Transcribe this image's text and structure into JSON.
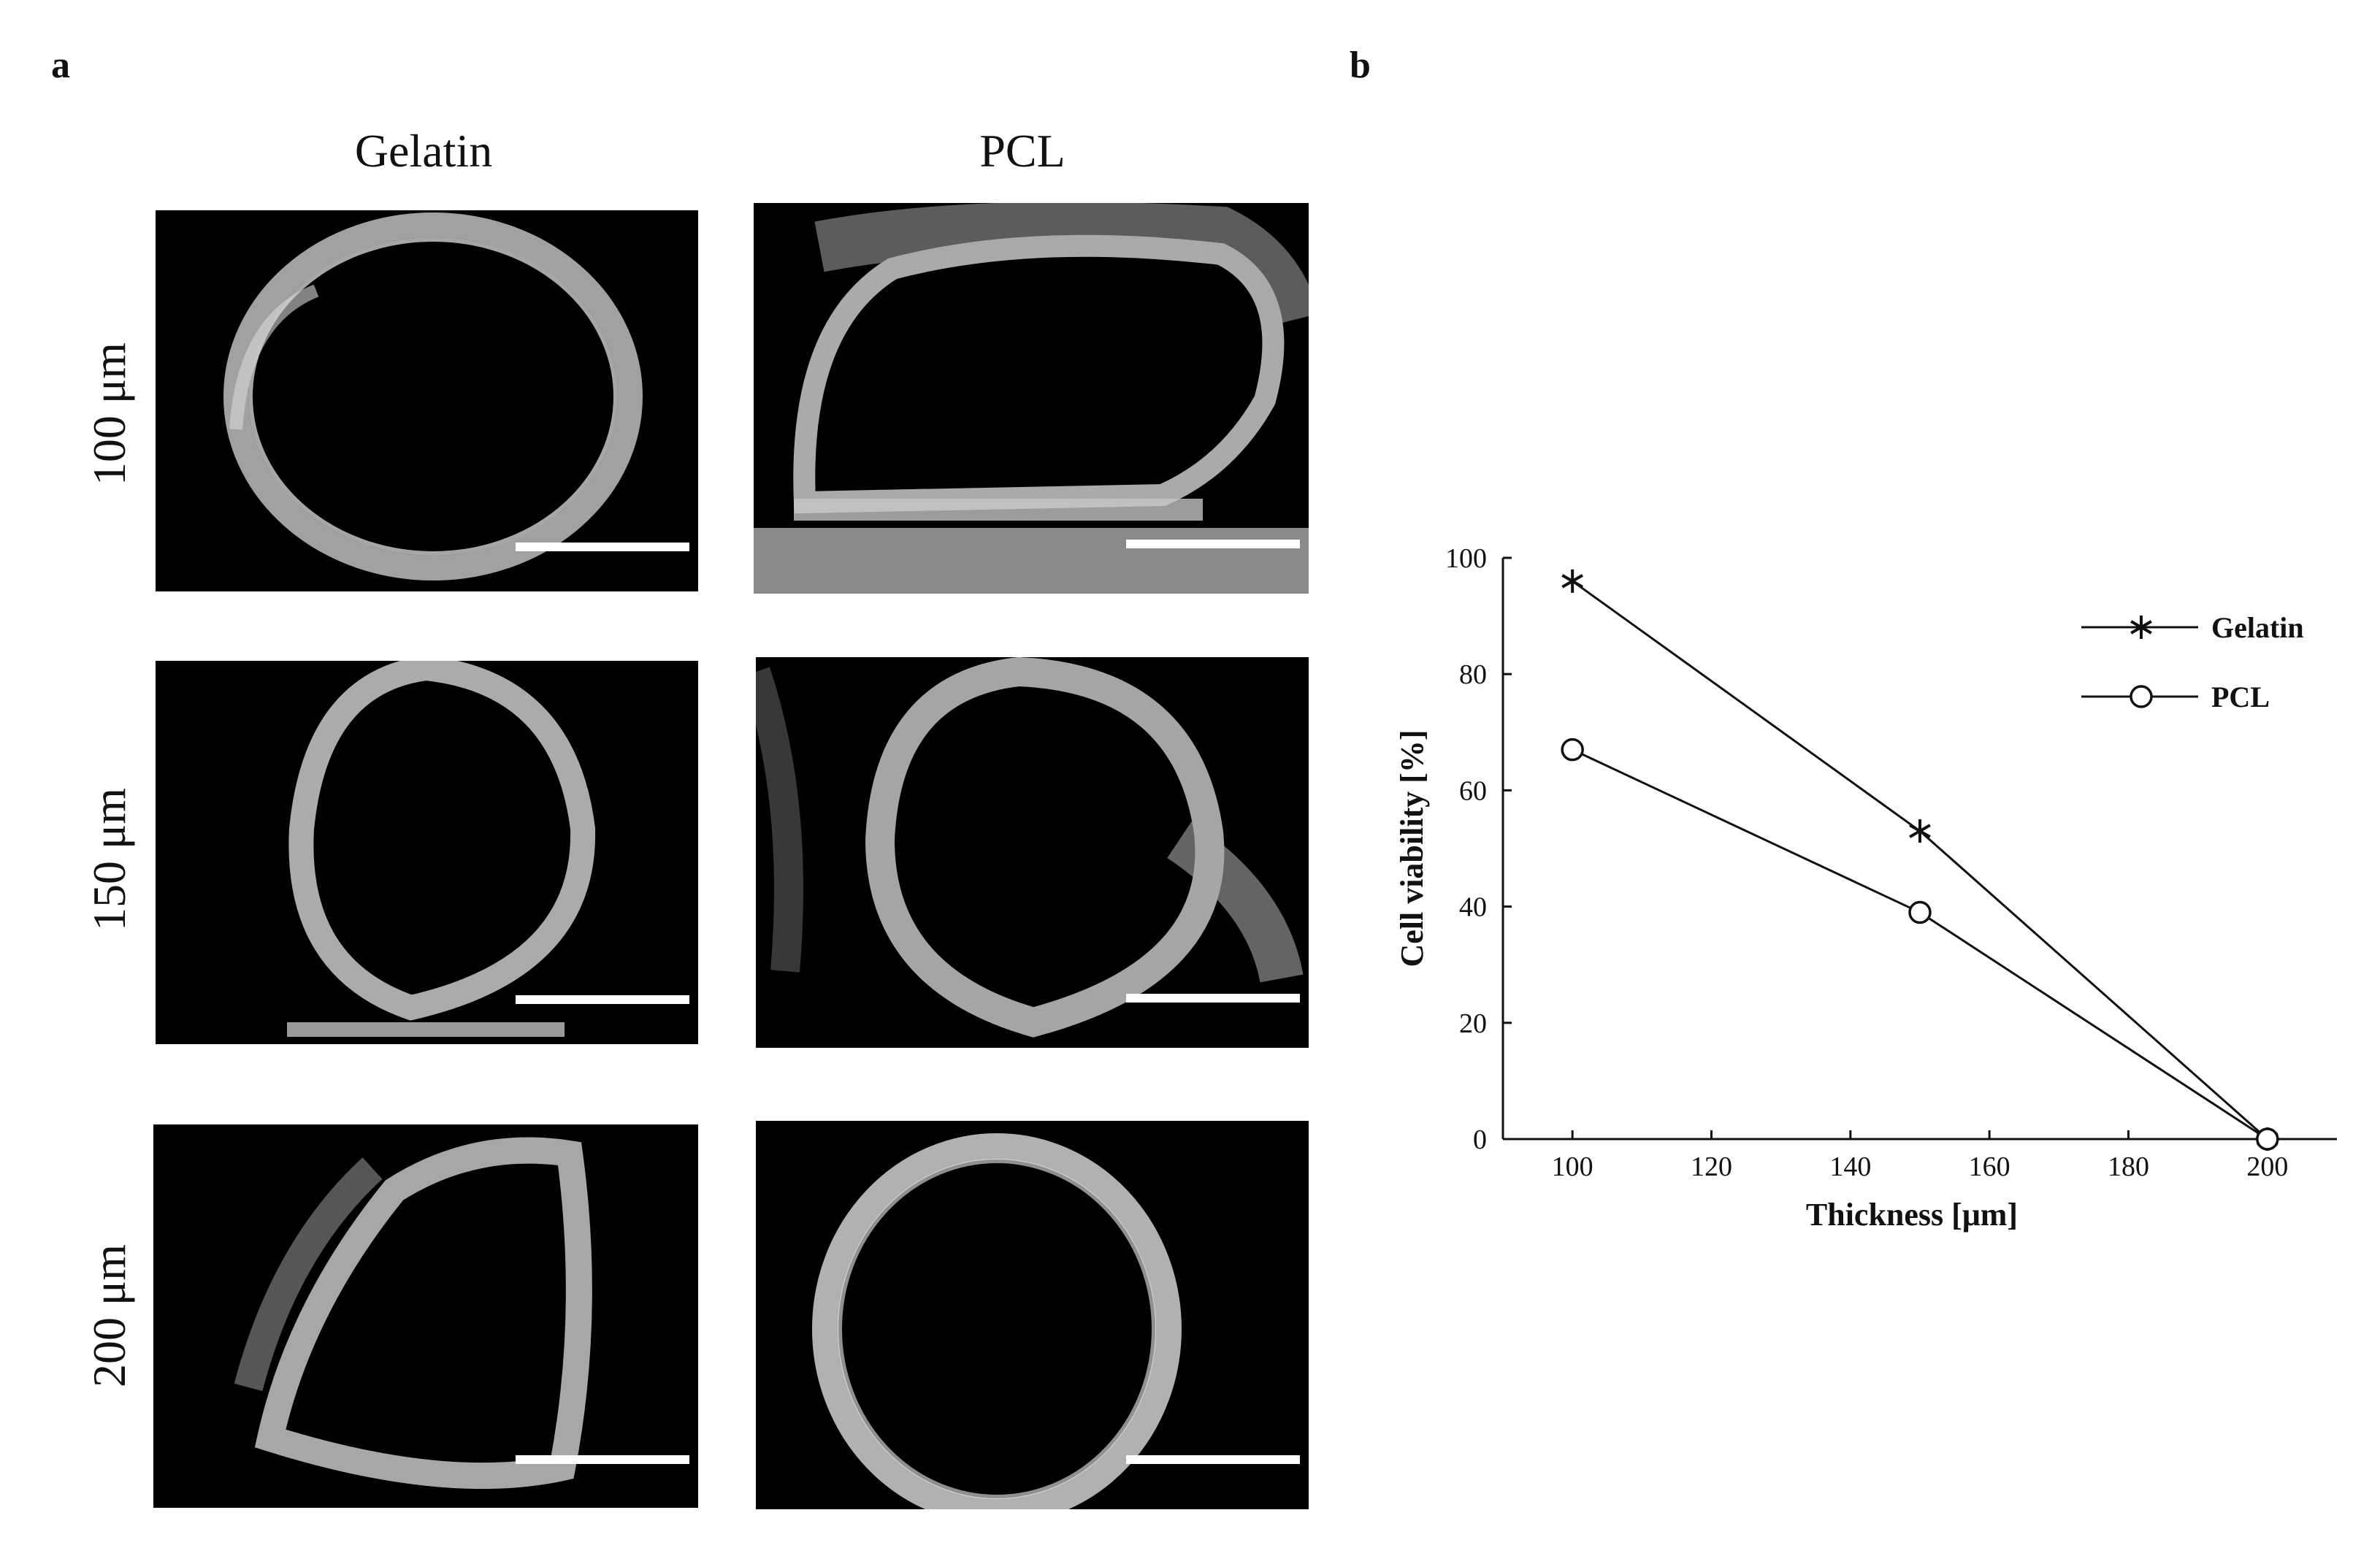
{
  "panel_a": {
    "letter": "a",
    "columns": [
      "Gelatin",
      "PCL"
    ],
    "rows": [
      "100 μm",
      "150 μm",
      "200 μm"
    ]
  },
  "panel_b": {
    "letter": "b"
  },
  "chart_data": {
    "type": "line",
    "xlabel": "Thickness [μm]",
    "ylabel": "Cell viability [%]",
    "xlim": [
      90,
      210
    ],
    "ylim": [
      0,
      100
    ],
    "xticks": [
      100,
      120,
      140,
      160,
      180,
      200
    ],
    "yticks": [
      0,
      20,
      40,
      60,
      80,
      100
    ],
    "grid": false,
    "legend_position": "top-right",
    "x": [
      100,
      150,
      200
    ],
    "series": [
      {
        "name": "Gelatin",
        "marker": "asterisk",
        "values": [
          96,
          53,
          0
        ]
      },
      {
        "name": "PCL",
        "marker": "circle",
        "values": [
          67,
          39,
          0
        ]
      }
    ]
  }
}
